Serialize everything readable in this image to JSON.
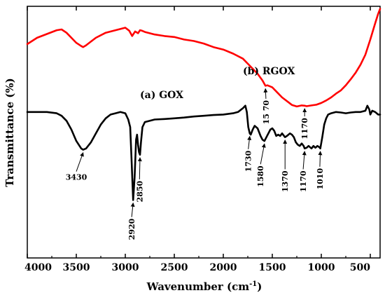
{
  "chart_data": {
    "type": "line",
    "xlabel": "Wavenumber (cm",
    "xlabel_sup": "-1",
    "xlabel_end": ")",
    "ylabel": "Transmittance (%)",
    "xlim": [
      4000,
      400
    ],
    "x_reversed": true,
    "y_ticks_shown": false,
    "x_ticks": [
      4000,
      3500,
      3000,
      2500,
      2000,
      1500,
      1000,
      500
    ],
    "x_tick_labels": [
      "4000",
      "3500",
      "3000",
      "2500",
      "2000",
      "1500",
      "1000",
      "500"
    ],
    "ylim": [
      0,
      100
    ],
    "grid": false,
    "series": [
      {
        "name": "(b) RGOX",
        "color": "#ff0000",
        "x": [
          4000,
          3900,
          3800,
          3700,
          3650,
          3600,
          3500,
          3450,
          3430,
          3400,
          3300,
          3200,
          3100,
          3000,
          2960,
          2930,
          2920,
          2900,
          2870,
          2850,
          2830,
          2800,
          2700,
          2600,
          2500,
          2400,
          2300,
          2200,
          2100,
          2000,
          1900,
          1800,
          1750,
          1700,
          1650,
          1600,
          1570,
          1550,
          1500,
          1450,
          1400,
          1350,
          1300,
          1250,
          1200,
          1170,
          1150,
          1100,
          1050,
          1000,
          950,
          900,
          850,
          800,
          750,
          700,
          650,
          600,
          550,
          500,
          450,
          420,
          400
        ],
        "y": [
          85,
          87.5,
          89,
          90.5,
          90.8,
          89.5,
          85.5,
          84.2,
          83.8,
          84.5,
          87.5,
          89.5,
          90.5,
          91.5,
          90.3,
          88.2,
          88.8,
          90,
          89.3,
          90.5,
          90.3,
          89.8,
          88.8,
          88.2,
          87.8,
          86.8,
          86.2,
          85.2,
          83.8,
          82.8,
          81.2,
          79.2,
          77.2,
          75.2,
          73.2,
          70.5,
          68.4,
          68.6,
          67.8,
          65.8,
          63.8,
          62.3,
          60.8,
          60.2,
          60.6,
          60.5,
          60.3,
          60.6,
          60.9,
          61.6,
          62.6,
          63.8,
          65.3,
          66.6,
          68.6,
          71.0,
          73.6,
          76.8,
          80.8,
          86.8,
          93.3,
          97,
          99
        ]
      },
      {
        "name": "(a) GOX",
        "color": "#000000",
        "x": [
          4000,
          3900,
          3800,
          3700,
          3650,
          3600,
          3550,
          3500,
          3450,
          3430,
          3400,
          3350,
          3300,
          3250,
          3200,
          3150,
          3100,
          3050,
          3000,
          2970,
          2950,
          2935,
          2920,
          2905,
          2890,
          2880,
          2870,
          2860,
          2850,
          2840,
          2825,
          2800,
          2700,
          2600,
          2500,
          2400,
          2300,
          2200,
          2100,
          2000,
          1900,
          1850,
          1800,
          1775,
          1760,
          1745,
          1730,
          1720,
          1700,
          1680,
          1650,
          1620,
          1600,
          1580,
          1560,
          1540,
          1520,
          1500,
          1480,
          1460,
          1440,
          1420,
          1400,
          1380,
          1370,
          1350,
          1320,
          1300,
          1280,
          1260,
          1240,
          1220,
          1200,
          1180,
          1170,
          1150,
          1130,
          1100,
          1080,
          1060,
          1040,
          1020,
          1010,
          990,
          970,
          950,
          930,
          900,
          850,
          800,
          750,
          700,
          650,
          600,
          550,
          530,
          510,
          500,
          480,
          450,
          420,
          400
        ],
        "y": [
          58,
          58,
          58,
          57.5,
          56.5,
          54.5,
          51,
          46.5,
          43.5,
          43,
          43.5,
          46,
          49.5,
          53,
          55.5,
          57,
          57.5,
          58,
          57.5,
          55,
          52,
          38,
          23,
          32,
          47,
          49,
          45,
          42,
          41,
          46,
          52,
          54,
          55,
          55.2,
          55.5,
          55.8,
          56.2,
          56.5,
          56.8,
          57,
          57.5,
          58,
          59.5,
          60.5,
          58,
          52,
          49.5,
          49,
          51,
          52.5,
          51.5,
          48.5,
          47,
          46.5,
          48,
          49.5,
          51,
          51.5,
          50.5,
          48.5,
          49,
          48.5,
          49.5,
          48.5,
          48,
          48.5,
          49.5,
          49,
          48,
          46,
          45,
          44.5,
          45.5,
          44.5,
          43.5,
          43.8,
          44.5,
          43.5,
          44.5,
          43.8,
          44.5,
          44,
          43.5,
          48,
          53,
          55.5,
          57,
          57.5,
          58,
          57.8,
          57.5,
          57.8,
          58,
          58,
          58.5,
          60.5,
          59,
          57,
          58.5,
          58,
          57,
          57
        ]
      }
    ],
    "legend_labels": [
      {
        "text": "(b) RGOX",
        "series": "RGOX"
      },
      {
        "text": "(a) GOX",
        "series": "GOX"
      }
    ],
    "annotations": [
      {
        "label": "3430",
        "series": "GOX",
        "x": 3430,
        "text_x": 3500,
        "text_y": 31,
        "rotated": false
      },
      {
        "label": "2920",
        "series": "GOX",
        "x": 2920,
        "text_x": 2935,
        "text_y": 9,
        "rotated": true
      },
      {
        "label": "2850",
        "series": "GOX",
        "x": 2850,
        "text_x": 2855,
        "text_y": 24,
        "rotated": true
      },
      {
        "label": "1730",
        "series": "GOX",
        "x": 1730,
        "text_x": 1745,
        "text_y": 36,
        "rotated": true
      },
      {
        "label": "1580",
        "series": "GOX",
        "x": 1580,
        "text_x": 1620,
        "text_y": 30,
        "rotated": true
      },
      {
        "label": "1370",
        "series": "GOX",
        "x": 1370,
        "text_x": 1370,
        "text_y": 28,
        "rotated": true
      },
      {
        "label": "1170",
        "series": "GOX",
        "x": 1170,
        "text_x": 1185,
        "text_y": 28,
        "rotated": true
      },
      {
        "label": "1010",
        "series": "GOX",
        "x": 1010,
        "text_x": 1015,
        "text_y": 29,
        "rotated": true
      },
      {
        "label": "15 70",
        "series": "RGOX",
        "x": 1570,
        "text_x": 1565,
        "text_y": 56,
        "rotated": true
      },
      {
        "label": "1170",
        "series": "RGOX",
        "x": 1170,
        "text_x": 1170,
        "text_y": 49,
        "rotated": true
      }
    ]
  }
}
